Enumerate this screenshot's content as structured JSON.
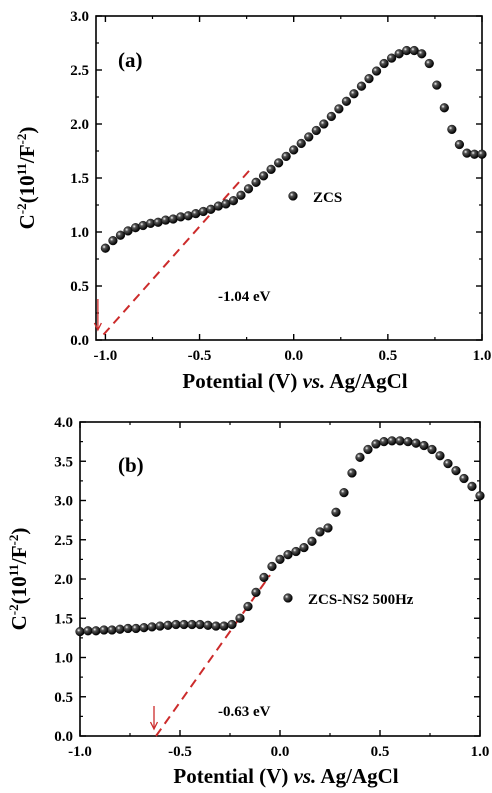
{
  "chart_data": [
    {
      "type": "scatter",
      "panel_label": "(a)",
      "xlabel": "Potential (V) vs. Ag/AgCl",
      "xlabel_parts": [
        "Potential (V) ",
        "vs.",
        " Ag/AgCl"
      ],
      "ylabel_parts": [
        "C",
        "-2",
        "(10",
        "11",
        "/F",
        "-2",
        ")"
      ],
      "xlim": [
        -1.05,
        1.0
      ],
      "ylim": [
        0.0,
        3.0
      ],
      "x_ticks": [
        -1.0,
        -0.5,
        0.0,
        0.5,
        1.0
      ],
      "x_tick_labels": [
        "-1.0",
        "-0.5",
        "0.0",
        "0.5",
        "1.0"
      ],
      "y_ticks": [
        0.0,
        0.5,
        1.0,
        1.5,
        2.0,
        2.5,
        3.0
      ],
      "y_tick_labels": [
        "0.0",
        "0.5",
        "1.0",
        "1.5",
        "2.0",
        "2.5",
        "3.0"
      ],
      "legend": "ZCS",
      "annotation": "-1.04 eV",
      "intercept_x": -1.04,
      "fit_line": {
        "x": [
          -1.01,
          -0.22
        ],
        "y": [
          0.05,
          1.6
        ]
      },
      "series": [
        {
          "name": "ZCS",
          "x": [
            -1.0,
            -0.96,
            -0.92,
            -0.88,
            -0.84,
            -0.8,
            -0.76,
            -0.72,
            -0.68,
            -0.64,
            -0.6,
            -0.56,
            -0.52,
            -0.48,
            -0.44,
            -0.4,
            -0.36,
            -0.32,
            -0.28,
            -0.24,
            -0.2,
            -0.16,
            -0.12,
            -0.08,
            -0.04,
            0.0,
            0.04,
            0.08,
            0.12,
            0.16,
            0.2,
            0.24,
            0.28,
            0.32,
            0.36,
            0.4,
            0.44,
            0.48,
            0.52,
            0.56,
            0.6,
            0.64,
            0.68,
            0.72,
            0.76,
            0.8,
            0.84,
            0.88,
            0.92,
            0.96,
            1.0
          ],
          "y": [
            0.85,
            0.92,
            0.97,
            1.01,
            1.04,
            1.06,
            1.08,
            1.09,
            1.11,
            1.12,
            1.14,
            1.15,
            1.17,
            1.19,
            1.21,
            1.24,
            1.26,
            1.29,
            1.34,
            1.4,
            1.46,
            1.52,
            1.58,
            1.64,
            1.7,
            1.76,
            1.82,
            1.88,
            1.94,
            2.0,
            2.07,
            2.14,
            2.21,
            2.28,
            2.35,
            2.42,
            2.49,
            2.56,
            2.61,
            2.65,
            2.68,
            2.68,
            2.65,
            2.56,
            2.36,
            2.15,
            1.95,
            1.81,
            1.73,
            1.72,
            1.72
          ]
        }
      ]
    },
    {
      "type": "scatter",
      "panel_label": "(b)",
      "xlabel": "Potential (V) vs. Ag/AgCl",
      "xlabel_parts": [
        "Potential (V) ",
        "vs.",
        " Ag/AgCl"
      ],
      "ylabel_parts": [
        "C",
        "-2",
        "(10",
        "11",
        "/F",
        "-2",
        ")"
      ],
      "xlim": [
        -1.0,
        1.0
      ],
      "ylim": [
        0.0,
        4.0
      ],
      "x_ticks": [
        -1.0,
        -0.5,
        0.0,
        0.5,
        1.0
      ],
      "x_tick_labels": [
        "-1.0",
        "-0.5",
        "0.0",
        "0.5",
        "1.0"
      ],
      "y_ticks": [
        0.0,
        0.5,
        1.0,
        1.5,
        2.0,
        2.5,
        3.0,
        3.5,
        4.0
      ],
      "y_tick_labels": [
        "0.0",
        "0.5",
        "1.0",
        "1.5",
        "2.0",
        "2.5",
        "3.0",
        "3.5",
        "4.0"
      ],
      "legend": "ZCS-NS2 500Hz",
      "annotation": "-0.63 eV",
      "intercept_x": -0.63,
      "fit_line": {
        "x": [
          -0.62,
          -0.05
        ],
        "y": [
          0.0,
          2.05
        ]
      },
      "series": [
        {
          "name": "ZCS-NS2 500Hz",
          "x": [
            -1.0,
            -0.96,
            -0.92,
            -0.88,
            -0.84,
            -0.8,
            -0.76,
            -0.72,
            -0.68,
            -0.64,
            -0.6,
            -0.56,
            -0.52,
            -0.48,
            -0.44,
            -0.4,
            -0.36,
            -0.32,
            -0.28,
            -0.24,
            -0.2,
            -0.16,
            -0.12,
            -0.08,
            -0.04,
            0.0,
            0.04,
            0.08,
            0.12,
            0.16,
            0.2,
            0.24,
            0.28,
            0.32,
            0.36,
            0.4,
            0.44,
            0.48,
            0.52,
            0.56,
            0.6,
            0.64,
            0.68,
            0.72,
            0.76,
            0.8,
            0.84,
            0.88,
            0.92,
            0.96,
            1.0
          ],
          "y": [
            1.33,
            1.34,
            1.34,
            1.35,
            1.35,
            1.36,
            1.37,
            1.37,
            1.38,
            1.39,
            1.4,
            1.41,
            1.42,
            1.42,
            1.42,
            1.42,
            1.41,
            1.4,
            1.4,
            1.42,
            1.5,
            1.65,
            1.83,
            2.02,
            2.16,
            2.25,
            2.31,
            2.35,
            2.4,
            2.48,
            2.6,
            2.65,
            2.85,
            3.1,
            3.35,
            3.55,
            3.65,
            3.72,
            3.75,
            3.76,
            3.76,
            3.75,
            3.73,
            3.7,
            3.65,
            3.57,
            3.47,
            3.38,
            3.28,
            3.18,
            3.06
          ]
        }
      ]
    }
  ]
}
